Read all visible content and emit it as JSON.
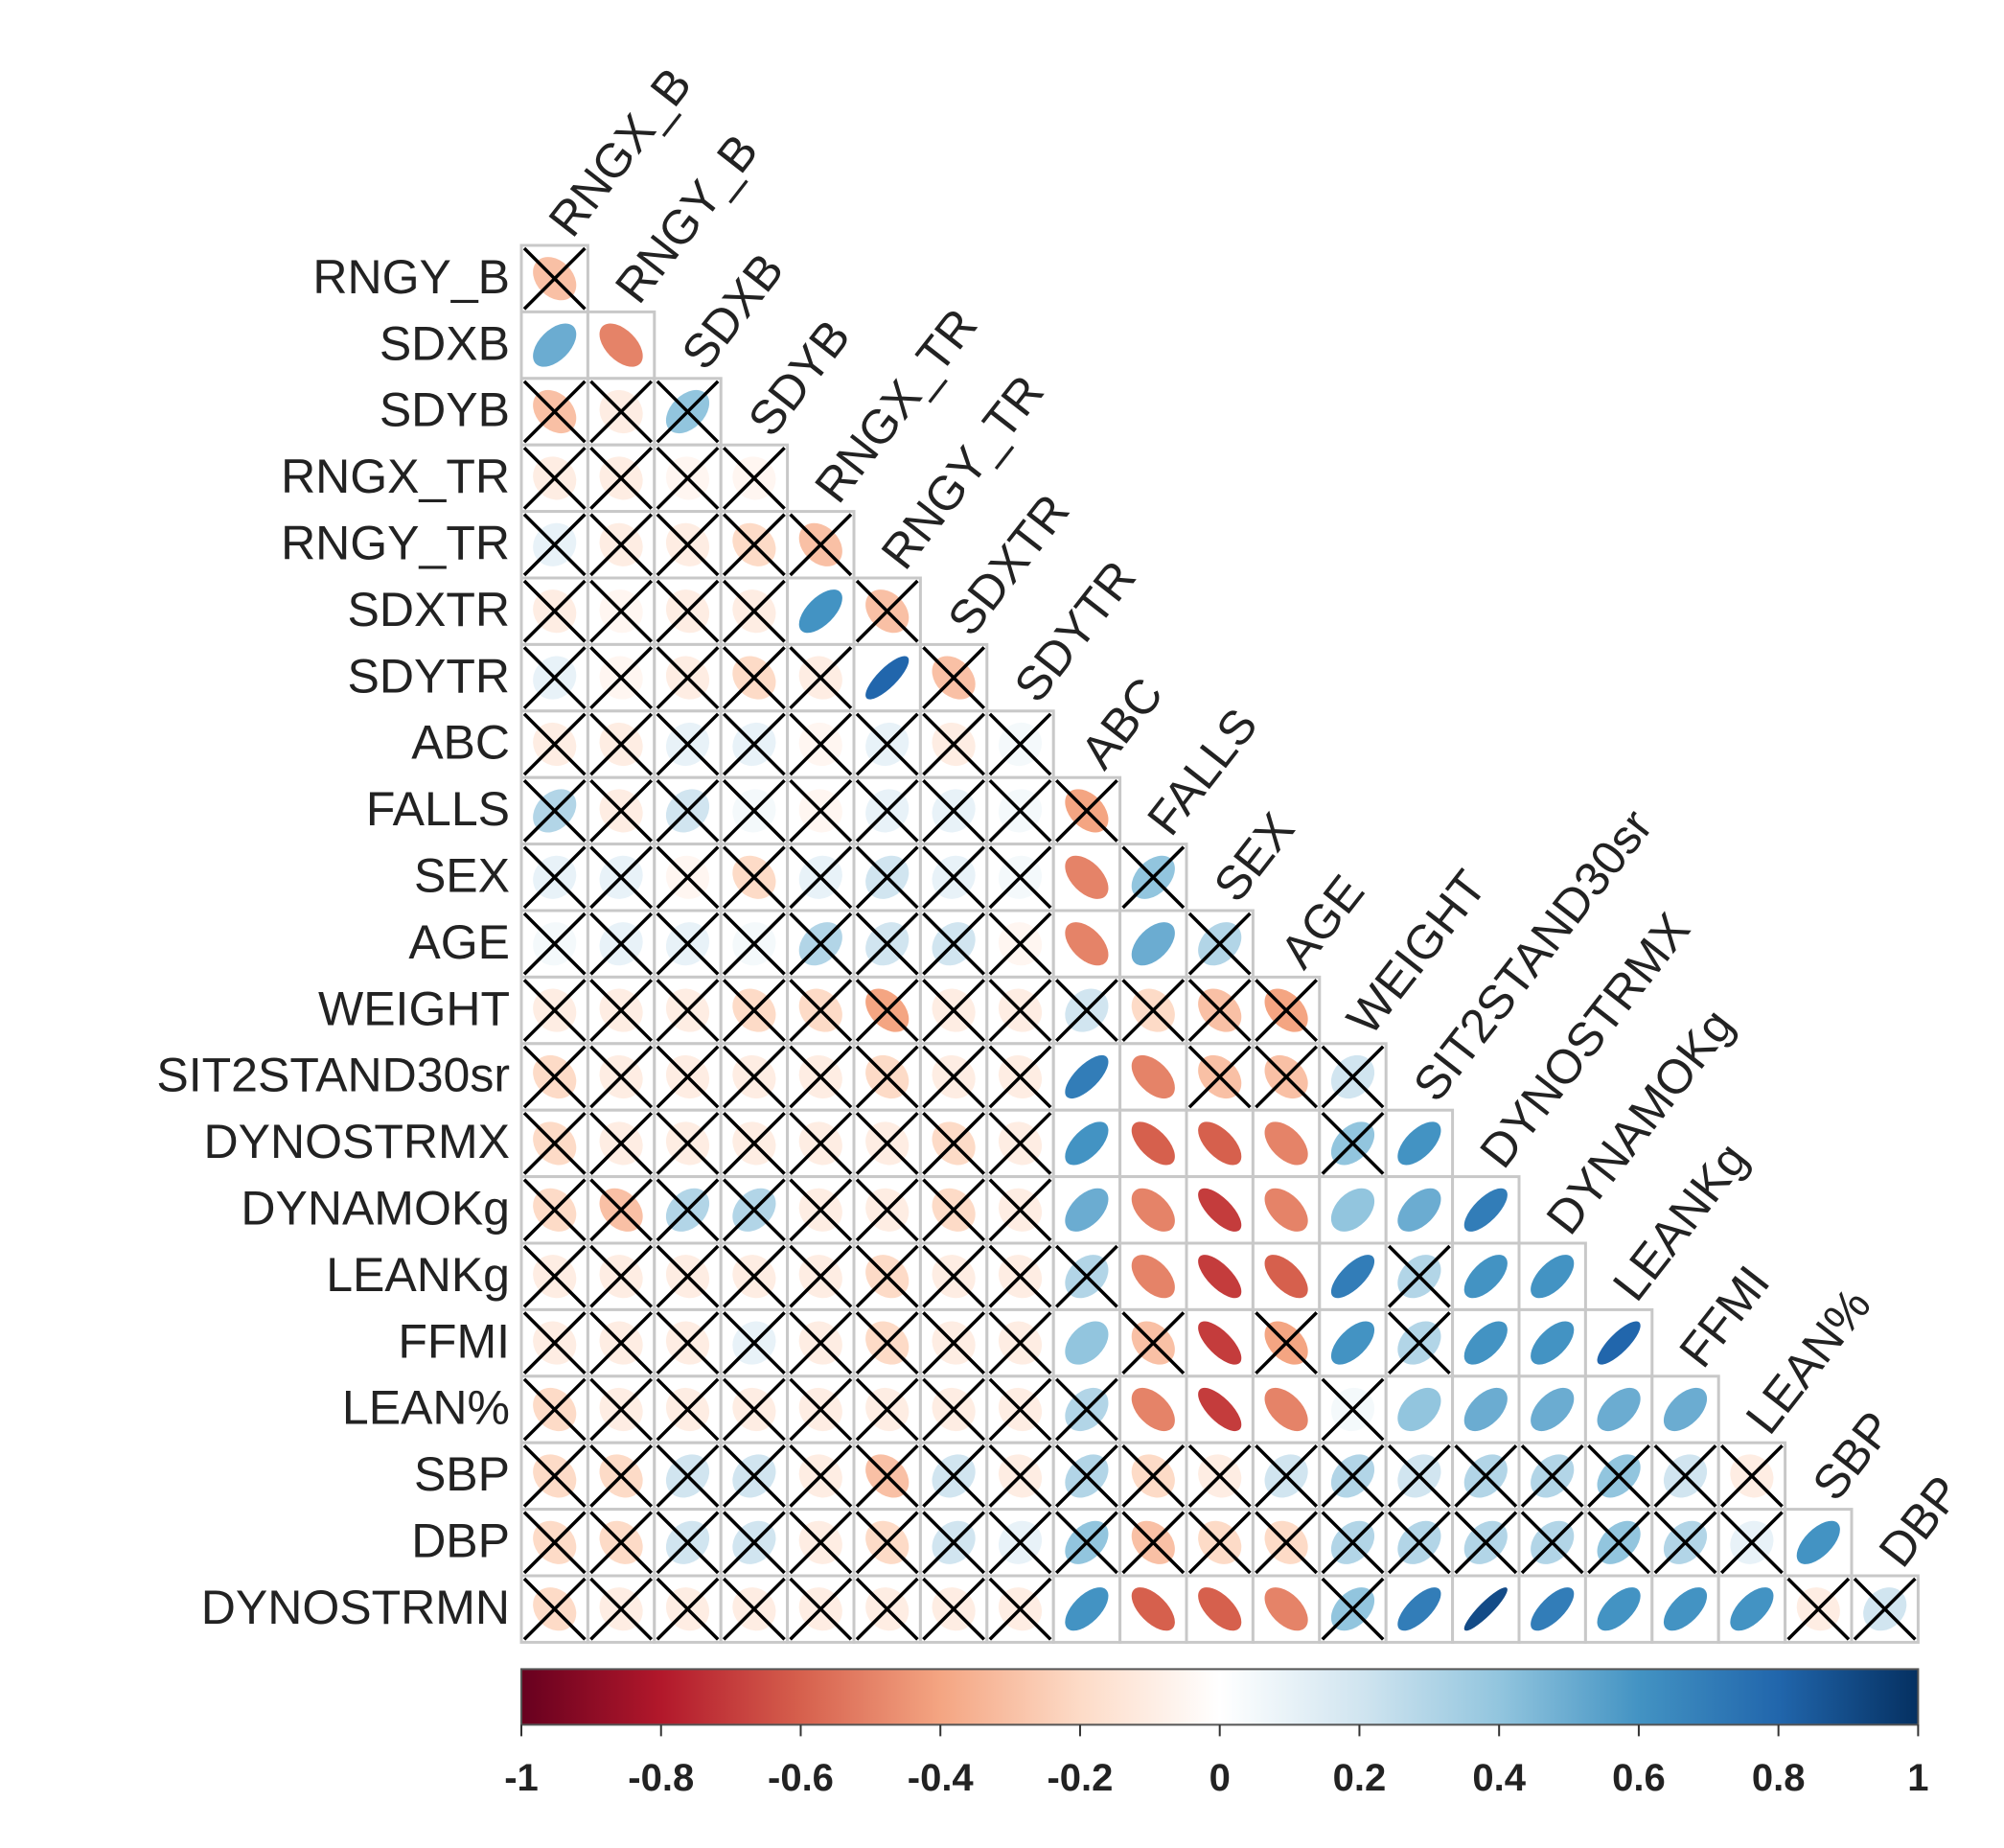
{
  "chart_data": {
    "type": "corrplot",
    "variables": [
      "RNGX_B",
      "RNGY_B",
      "SDXB",
      "SDYB",
      "RNGX_TR",
      "RNGY_TR",
      "SDXTR",
      "SDYTR",
      "ABC",
      "FALLS",
      "SEX",
      "AGE",
      "WEIGHT",
      "SIT2STAND30sr",
      "DYNOSTRMX",
      "DYNAMOKg",
      "LEANKg",
      "FFMI",
      "LEAN%",
      "SBP",
      "DBP",
      "DYNOSTRMN"
    ],
    "values": [
      [
        -0.3
      ],
      [
        0.5,
        -0.5
      ],
      [
        -0.3,
        -0.1,
        0.4
      ],
      [
        -0.1,
        -0.1,
        -0.05,
        -0.05
      ],
      [
        0.1,
        -0.1,
        -0.1,
        -0.2,
        -0.3
      ],
      [
        -0.1,
        -0.05,
        -0.1,
        -0.1,
        0.6,
        -0.3
      ],
      [
        0.1,
        -0.05,
        -0.1,
        -0.2,
        -0.1,
        0.8,
        -0.3
      ],
      [
        -0.1,
        -0.1,
        0.1,
        0.1,
        -0.05,
        0.1,
        -0.1,
        0.05
      ],
      [
        0.3,
        -0.1,
        0.2,
        0.05,
        -0.05,
        0.1,
        0.1,
        0.05,
        -0.4
      ],
      [
        0.1,
        0.1,
        -0.05,
        -0.2,
        0.1,
        0.2,
        0.1,
        0.05,
        -0.5,
        0.4
      ],
      [
        0.05,
        0.1,
        0.1,
        0.05,
        0.3,
        0.2,
        0.2,
        -0.05,
        -0.5,
        0.5,
        0.3
      ],
      [
        -0.1,
        -0.1,
        -0.1,
        -0.2,
        -0.2,
        -0.4,
        -0.1,
        -0.1,
        0.2,
        -0.2,
        -0.3,
        -0.4
      ],
      [
        -0.2,
        -0.1,
        -0.1,
        -0.1,
        -0.1,
        -0.2,
        -0.1,
        -0.1,
        0.7,
        -0.5,
        -0.3,
        -0.3,
        0.2
      ],
      [
        -0.2,
        -0.1,
        -0.1,
        -0.1,
        -0.1,
        -0.1,
        -0.2,
        -0.1,
        0.6,
        -0.6,
        -0.6,
        -0.5,
        0.4,
        0.6
      ],
      [
        -0.2,
        -0.3,
        0.3,
        0.3,
        -0.1,
        -0.1,
        -0.2,
        -0.1,
        0.5,
        -0.5,
        -0.7,
        -0.5,
        0.4,
        0.5,
        0.7
      ],
      [
        -0.1,
        -0.1,
        -0.1,
        -0.1,
        -0.1,
        -0.2,
        -0.1,
        -0.1,
        0.3,
        -0.5,
        -0.7,
        -0.6,
        0.7,
        0.3,
        0.6,
        0.6
      ],
      [
        -0.1,
        -0.1,
        -0.1,
        0.1,
        -0.1,
        -0.2,
        -0.1,
        -0.1,
        0.4,
        -0.3,
        -0.7,
        -0.4,
        0.6,
        0.3,
        0.6,
        0.6,
        0.8
      ],
      [
        -0.2,
        -0.1,
        -0.1,
        -0.1,
        -0.1,
        -0.1,
        -0.1,
        -0.1,
        0.3,
        -0.5,
        -0.7,
        -0.5,
        0.05,
        0.4,
        0.5,
        0.5,
        0.5,
        0.5
      ],
      [
        -0.2,
        -0.2,
        0.2,
        0.2,
        -0.1,
        -0.3,
        0.2,
        -0.1,
        0.3,
        -0.2,
        -0.1,
        0.2,
        0.3,
        0.2,
        0.3,
        0.3,
        0.4,
        0.2,
        -0.1
      ],
      [
        -0.2,
        -0.2,
        0.2,
        0.2,
        -0.1,
        -0.2,
        0.2,
        0.1,
        0.4,
        -0.3,
        -0.2,
        -0.2,
        0.3,
        0.3,
        0.3,
        0.3,
        0.4,
        0.3,
        0.1,
        0.6
      ],
      [
        -0.2,
        -0.1,
        -0.1,
        -0.1,
        -0.1,
        -0.1,
        -0.1,
        -0.1,
        0.6,
        -0.6,
        -0.6,
        -0.5,
        0.4,
        0.7,
        0.9,
        0.7,
        0.6,
        0.6,
        0.6,
        -0.1,
        0.2
      ]
    ],
    "insignificant": [
      [
        true
      ],
      [
        false,
        false
      ],
      [
        true,
        true,
        true
      ],
      [
        true,
        true,
        true,
        true
      ],
      [
        true,
        true,
        true,
        true,
        true
      ],
      [
        true,
        true,
        true,
        true,
        false,
        true
      ],
      [
        true,
        true,
        true,
        true,
        true,
        false,
        true
      ],
      [
        true,
        true,
        true,
        true,
        true,
        true,
        true,
        true
      ],
      [
        true,
        true,
        true,
        true,
        true,
        true,
        true,
        true,
        true
      ],
      [
        true,
        true,
        true,
        true,
        true,
        true,
        true,
        true,
        false,
        true
      ],
      [
        true,
        true,
        true,
        true,
        true,
        true,
        true,
        true,
        false,
        false,
        true
      ],
      [
        true,
        true,
        true,
        true,
        true,
        true,
        true,
        true,
        true,
        true,
        true,
        true
      ],
      [
        true,
        true,
        true,
        true,
        true,
        true,
        true,
        true,
        false,
        false,
        true,
        true,
        true
      ],
      [
        true,
        true,
        true,
        true,
        true,
        true,
        true,
        true,
        false,
        false,
        false,
        false,
        true,
        false
      ],
      [
        true,
        true,
        true,
        true,
        true,
        true,
        true,
        true,
        false,
        false,
        false,
        false,
        false,
        false,
        false
      ],
      [
        true,
        true,
        true,
        true,
        true,
        true,
        true,
        true,
        true,
        false,
        false,
        false,
        false,
        true,
        false,
        false
      ],
      [
        true,
        true,
        true,
        true,
        true,
        true,
        true,
        true,
        false,
        true,
        false,
        true,
        false,
        true,
        false,
        false,
        false
      ],
      [
        true,
        true,
        true,
        true,
        true,
        true,
        true,
        true,
        true,
        false,
        false,
        false,
        true,
        false,
        false,
        false,
        false,
        false
      ],
      [
        true,
        true,
        true,
        true,
        true,
        true,
        true,
        true,
        true,
        true,
        true,
        true,
        true,
        true,
        true,
        true,
        true,
        true,
        true
      ],
      [
        true,
        true,
        true,
        true,
        true,
        true,
        true,
        true,
        true,
        true,
        true,
        true,
        true,
        true,
        true,
        true,
        true,
        true,
        true,
        false
      ],
      [
        true,
        true,
        true,
        true,
        true,
        true,
        true,
        true,
        false,
        false,
        false,
        false,
        true,
        false,
        false,
        false,
        false,
        false,
        false,
        true,
        true
      ]
    ],
    "colormap": [
      "#67001F",
      "#B2182B",
      "#D6604D",
      "#F4A582",
      "#FDDBC7",
      "#FFFFFF",
      "#D1E5F0",
      "#92C5DE",
      "#4393C3",
      "#2166AC",
      "#053061"
    ],
    "clim": [
      -1,
      1
    ],
    "cticks": [
      -1,
      -0.8,
      -0.6,
      -0.4,
      -0.2,
      0,
      0.2,
      0.4,
      0.6,
      0.8,
      1
    ]
  }
}
